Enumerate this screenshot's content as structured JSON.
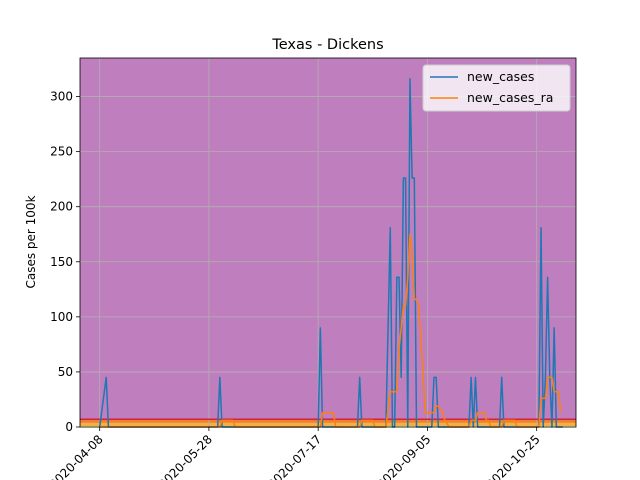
{
  "chart_data": {
    "type": "line",
    "title": "Texas - Dickens",
    "xlabel": "",
    "ylabel": "Cases per 100k",
    "xlim": [
      "2020-03-30",
      "2020-11-12"
    ],
    "ylim": [
      0,
      335
    ],
    "x_ticks": [
      "2020-04-08",
      "2020-05-28",
      "2020-07-17",
      "2020-09-05",
      "2020-10-25"
    ],
    "y_ticks": [
      0,
      50,
      100,
      150,
      200,
      250,
      300
    ],
    "grid": true,
    "legend_position": "top-right",
    "background_color": "#bf7fbf",
    "threshold_bands": [
      {
        "from": 0,
        "to": 1,
        "color": "#ffff66"
      },
      {
        "from": 1,
        "to": 4,
        "color": "#f5b041"
      },
      {
        "from": 4,
        "to": 7,
        "color": "#f08030"
      }
    ],
    "threshold_line": {
      "value": 7,
      "color": "#d2233a"
    },
    "series": [
      {
        "name": "new_cases",
        "color": "#1f77b4",
        "points": [
          [
            "2020-04-08",
            0
          ],
          [
            "2020-04-11",
            45
          ],
          [
            "2020-04-12",
            0
          ],
          [
            "2020-06-01",
            0
          ],
          [
            "2020-06-02",
            45
          ],
          [
            "2020-06-03",
            0
          ],
          [
            "2020-07-17",
            0
          ],
          [
            "2020-07-18",
            90
          ],
          [
            "2020-07-19",
            0
          ],
          [
            "2020-08-04",
            0
          ],
          [
            "2020-08-05",
            45
          ],
          [
            "2020-08-06",
            0
          ],
          [
            "2020-08-17",
            0
          ],
          [
            "2020-08-19",
            181
          ],
          [
            "2020-08-20",
            0
          ],
          [
            "2020-08-21",
            0
          ],
          [
            "2020-08-22",
            136
          ],
          [
            "2020-08-23",
            136
          ],
          [
            "2020-08-24",
            45
          ],
          [
            "2020-08-25",
            226
          ],
          [
            "2020-08-26",
            226
          ],
          [
            "2020-08-27",
            0
          ],
          [
            "2020-08-28",
            316
          ],
          [
            "2020-08-29",
            226
          ],
          [
            "2020-08-30",
            226
          ],
          [
            "2020-08-31",
            0
          ],
          [
            "2020-09-07",
            0
          ],
          [
            "2020-09-08",
            45
          ],
          [
            "2020-09-09",
            45
          ],
          [
            "2020-09-10",
            0
          ],
          [
            "2020-09-24",
            0
          ],
          [
            "2020-09-25",
            45
          ],
          [
            "2020-09-26",
            0
          ],
          [
            "2020-09-27",
            45
          ],
          [
            "2020-09-28",
            0
          ],
          [
            "2020-10-08",
            0
          ],
          [
            "2020-10-09",
            45
          ],
          [
            "2020-10-10",
            0
          ],
          [
            "2020-10-26",
            0
          ],
          [
            "2020-10-27",
            181
          ],
          [
            "2020-10-28",
            0
          ],
          [
            "2020-10-29",
            45
          ],
          [
            "2020-10-30",
            136
          ],
          [
            "2020-10-31",
            45
          ],
          [
            "2020-11-01",
            0
          ],
          [
            "2020-11-02",
            90
          ],
          [
            "2020-11-03",
            0
          ],
          [
            "2020-11-06",
            0
          ]
        ]
      },
      {
        "name": "new_cases_ra",
        "color": "#ff7f0e",
        "points": [
          [
            "2020-04-08",
            0
          ],
          [
            "2020-06-02",
            0
          ],
          [
            "2020-06-03",
            6
          ],
          [
            "2020-06-08",
            6
          ],
          [
            "2020-06-09",
            0
          ],
          [
            "2020-07-18",
            0
          ],
          [
            "2020-07-19",
            13
          ],
          [
            "2020-07-24",
            13
          ],
          [
            "2020-07-25",
            0
          ],
          [
            "2020-08-05",
            0
          ],
          [
            "2020-08-06",
            6
          ],
          [
            "2020-08-11",
            6
          ],
          [
            "2020-08-12",
            0
          ],
          [
            "2020-08-17",
            0
          ],
          [
            "2020-08-19",
            32
          ],
          [
            "2020-08-22",
            32
          ],
          [
            "2020-08-23",
            71
          ],
          [
            "2020-08-24",
            90
          ],
          [
            "2020-08-25",
            110
          ],
          [
            "2020-08-26",
            110
          ],
          [
            "2020-08-27",
            135
          ],
          [
            "2020-08-28",
            175
          ],
          [
            "2020-08-29",
            158
          ],
          [
            "2020-08-30",
            117
          ],
          [
            "2020-08-31",
            115
          ],
          [
            "2020-09-01",
            110
          ],
          [
            "2020-09-03",
            50
          ],
          [
            "2020-09-04",
            13
          ],
          [
            "2020-09-05",
            13
          ],
          [
            "2020-09-08",
            13
          ],
          [
            "2020-09-09",
            19
          ],
          [
            "2020-09-10",
            19
          ],
          [
            "2020-09-12",
            13
          ],
          [
            "2020-09-13",
            6
          ],
          [
            "2020-09-15",
            0
          ],
          [
            "2020-09-24",
            0
          ],
          [
            "2020-09-25",
            6
          ],
          [
            "2020-09-27",
            6
          ],
          [
            "2020-09-28",
            13
          ],
          [
            "2020-10-01",
            13
          ],
          [
            "2020-10-02",
            6
          ],
          [
            "2020-10-03",
            6
          ],
          [
            "2020-10-04",
            0
          ],
          [
            "2020-10-09",
            0
          ],
          [
            "2020-10-10",
            6
          ],
          [
            "2020-10-15",
            6
          ],
          [
            "2020-10-16",
            0
          ],
          [
            "2020-10-26",
            0
          ],
          [
            "2020-10-27",
            26
          ],
          [
            "2020-10-29",
            26
          ],
          [
            "2020-10-30",
            45
          ],
          [
            "2020-11-01",
            45
          ],
          [
            "2020-11-02",
            32
          ],
          [
            "2020-11-04",
            32
          ],
          [
            "2020-11-05",
            13
          ]
        ]
      }
    ]
  }
}
